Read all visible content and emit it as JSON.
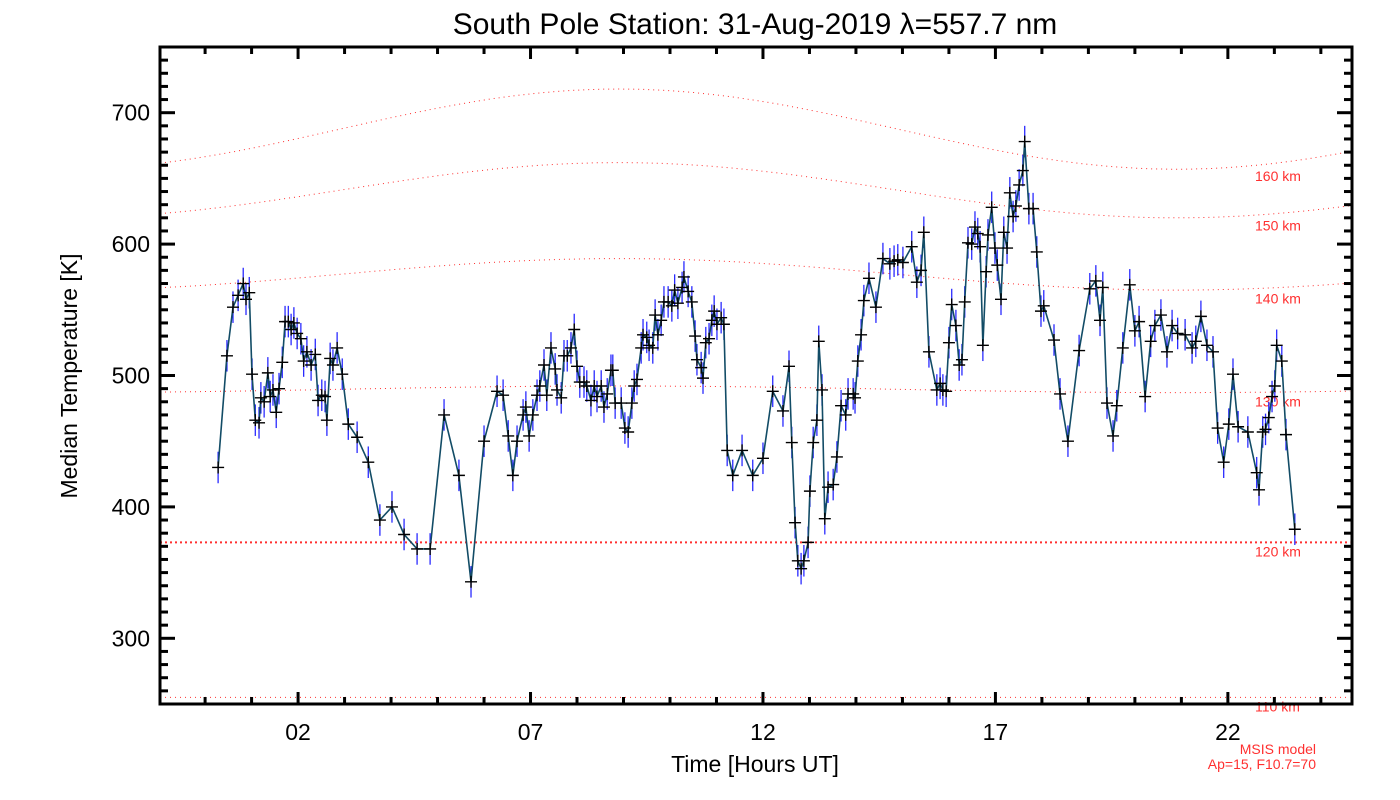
{
  "chart_data": {
    "type": "line",
    "title": "South Pole Station: 31-Aug-2019 λ=557.7 nm",
    "xlabel": "Time [Hours UT]",
    "ylabel": "Median Temperature [K]",
    "xlim": [
      -0.97,
      24.67
    ],
    "ylim": [
      250,
      750
    ],
    "x_ticks": [
      2,
      7,
      12,
      17,
      22
    ],
    "x_tick_labels": [
      "02",
      "07",
      "12",
      "17",
      "22"
    ],
    "y_ticks": [
      300,
      400,
      500,
      600,
      700
    ],
    "y_tick_labels": [
      "300",
      "400",
      "500",
      "600",
      "700"
    ],
    "grid": false,
    "series": [
      {
        "name": "Median Temperature",
        "color": "#124c66",
        "error_color": "#2a2aff",
        "marker_color": "#000000",
        "error_K": 12,
        "x": [
          0.28,
          0.47,
          0.6,
          0.71,
          0.82,
          0.88,
          0.95,
          1.01,
          1.08,
          1.16,
          1.2,
          1.27,
          1.35,
          1.4,
          1.46,
          1.53,
          1.59,
          1.66,
          1.72,
          1.79,
          1.85,
          1.91,
          1.98,
          2.06,
          2.12,
          2.19,
          2.28,
          2.37,
          2.43,
          2.51,
          2.58,
          2.62,
          2.69,
          2.75,
          2.84,
          2.95,
          3.08,
          3.27,
          3.51,
          3.76,
          4.02,
          4.28,
          4.56,
          4.84,
          5.14,
          5.46,
          5.72,
          6.0,
          6.28,
          6.41,
          6.52,
          6.62,
          6.71,
          6.84,
          6.9,
          6.97,
          7.05,
          7.14,
          7.2,
          7.29,
          7.35,
          7.44,
          7.53,
          7.57,
          7.66,
          7.72,
          7.79,
          7.87,
          7.94,
          8.0,
          8.06,
          8.15,
          8.21,
          8.3,
          8.37,
          8.43,
          8.52,
          8.58,
          8.65,
          8.73,
          8.77,
          8.82,
          8.95,
          9.03,
          9.1,
          9.18,
          9.23,
          9.29,
          9.38,
          9.42,
          9.5,
          9.55,
          9.63,
          9.68,
          9.74,
          9.81,
          9.87,
          9.96,
          10.04,
          10.1,
          10.17,
          10.26,
          10.3,
          10.39,
          10.47,
          10.54,
          10.58,
          10.67,
          10.71,
          10.77,
          10.84,
          10.9,
          10.95,
          11.01,
          11.1,
          11.16,
          11.23,
          11.35,
          11.55,
          11.78,
          12.0,
          12.21,
          12.43,
          12.56,
          12.62,
          12.69,
          12.75,
          12.82,
          12.88,
          12.97,
          13.01,
          13.08,
          13.16,
          13.2,
          13.27,
          13.33,
          13.4,
          13.51,
          13.59,
          13.68,
          13.78,
          13.83,
          13.94,
          13.98,
          14.04,
          14.11,
          14.17,
          14.28,
          14.43,
          14.58,
          14.73,
          14.82,
          14.9,
          15.01,
          15.2,
          15.31,
          15.4,
          15.46,
          15.57,
          15.74,
          15.81,
          15.87,
          15.94,
          16.0,
          16.06,
          16.15,
          16.22,
          16.28,
          16.34,
          16.41,
          16.49,
          16.56,
          16.62,
          16.67,
          16.73,
          16.8,
          16.84,
          16.92,
          16.99,
          17.04,
          17.12,
          17.18,
          17.25,
          17.31,
          17.38,
          17.44,
          17.51,
          17.59,
          17.63,
          17.72,
          17.81,
          17.89,
          17.98,
          18.04,
          18.26,
          18.39,
          18.56,
          18.8,
          19.03,
          19.16,
          19.25,
          19.31,
          19.4,
          19.53,
          19.61,
          19.74,
          19.89,
          20.0,
          20.09,
          20.22,
          20.34,
          20.43,
          20.56,
          20.69,
          20.8,
          20.92,
          21.08,
          21.23,
          21.31,
          21.42,
          21.55,
          21.68,
          21.78,
          21.91,
          22.02,
          22.11,
          22.22,
          22.43,
          22.62,
          22.67,
          22.75,
          22.81,
          22.88,
          22.95,
          23.01,
          23.05,
          23.16,
          23.25,
          23.44
        ],
        "y": [
          430,
          515,
          552,
          561,
          570,
          558,
          563,
          501,
          466,
          464,
          483,
          480,
          502,
          484,
          489,
          472,
          490,
          510,
          541,
          541,
          535,
          540,
          532,
          528,
          511,
          518,
          508,
          516,
          481,
          485,
          484,
          466,
          513,
          508,
          521,
          501,
          463,
          453,
          434,
          390,
          400,
          379,
          368,
          368,
          470,
          424,
          343,
          450,
          488,
          485,
          454,
          424,
          450,
          470,
          476,
          454,
          470,
          485,
          492,
          508,
          485,
          521,
          505,
          489,
          483,
          515,
          515,
          521,
          535,
          507,
          495,
          495,
          492,
          481,
          492,
          484,
          492,
          476,
          486,
          504,
          504,
          479,
          479,
          460,
          457,
          479,
          492,
          497,
          521,
          531,
          529,
          523,
          521,
          546,
          531,
          542,
          556,
          556,
          553,
          565,
          555,
          567,
          575,
          564,
          556,
          530,
          512,
          506,
          498,
          525,
          528,
          542,
          549,
          539,
          544,
          539,
          443,
          424,
          443,
          424,
          437,
          488,
          473,
          507,
          449,
          388,
          359,
          353,
          359,
          373,
          412,
          449,
          466,
          526,
          489,
          391,
          415,
          417,
          438,
          477,
          470,
          486,
          486,
          483,
          511,
          531,
          557,
          574,
          552,
          589,
          585,
          587,
          588,
          586,
          598,
          571,
          580,
          609,
          518,
          489,
          494,
          489,
          488,
          525,
          554,
          538,
          508,
          512,
          556,
          601,
          600,
          613,
          608,
          598,
          523,
          579,
          607,
          628,
          597,
          584,
          558,
          609,
          597,
          639,
          621,
          629,
          645,
          656,
          678,
          627,
          627,
          594,
          549,
          553,
          527,
          486,
          450,
          519,
          566,
          572,
          542,
          567,
          479,
          454,
          477,
          521,
          569,
          534,
          541,
          484,
          526,
          538,
          546,
          518,
          538,
          532,
          531,
          521,
          526,
          545,
          523,
          518,
          460,
          434,
          463,
          501,
          461,
          457,
          426,
          413,
          457,
          459,
          468,
          484,
          492,
          523,
          511,
          455,
          383
        ]
      }
    ],
    "model_curves": {
      "color": "#ff3030",
      "curves": [
        {
          "label": "160 km",
          "mean": 687.5,
          "amplitude": 30.5,
          "peak_hour": 8.9
        },
        {
          "label": "150 km",
          "mean": 641,
          "amplitude": 21,
          "peak_hour": 8.9
        },
        {
          "label": "140 km",
          "mean": 577,
          "amplitude": 12,
          "peak_hour": 8.9
        },
        {
          "label": "130 km",
          "mean": 489.5,
          "amplitude": 2.5,
          "peak_hour": 8.9
        },
        {
          "label": "120 km",
          "mean": 373,
          "amplitude": 0,
          "peak_hour": 8.9
        },
        {
          "label": "110 km",
          "mean": 255,
          "amplitude": 0,
          "peak_hour": 8.9
        }
      ]
    },
    "annotations": [
      "MSIS model",
      "Ap=15, F10.7=70"
    ]
  }
}
